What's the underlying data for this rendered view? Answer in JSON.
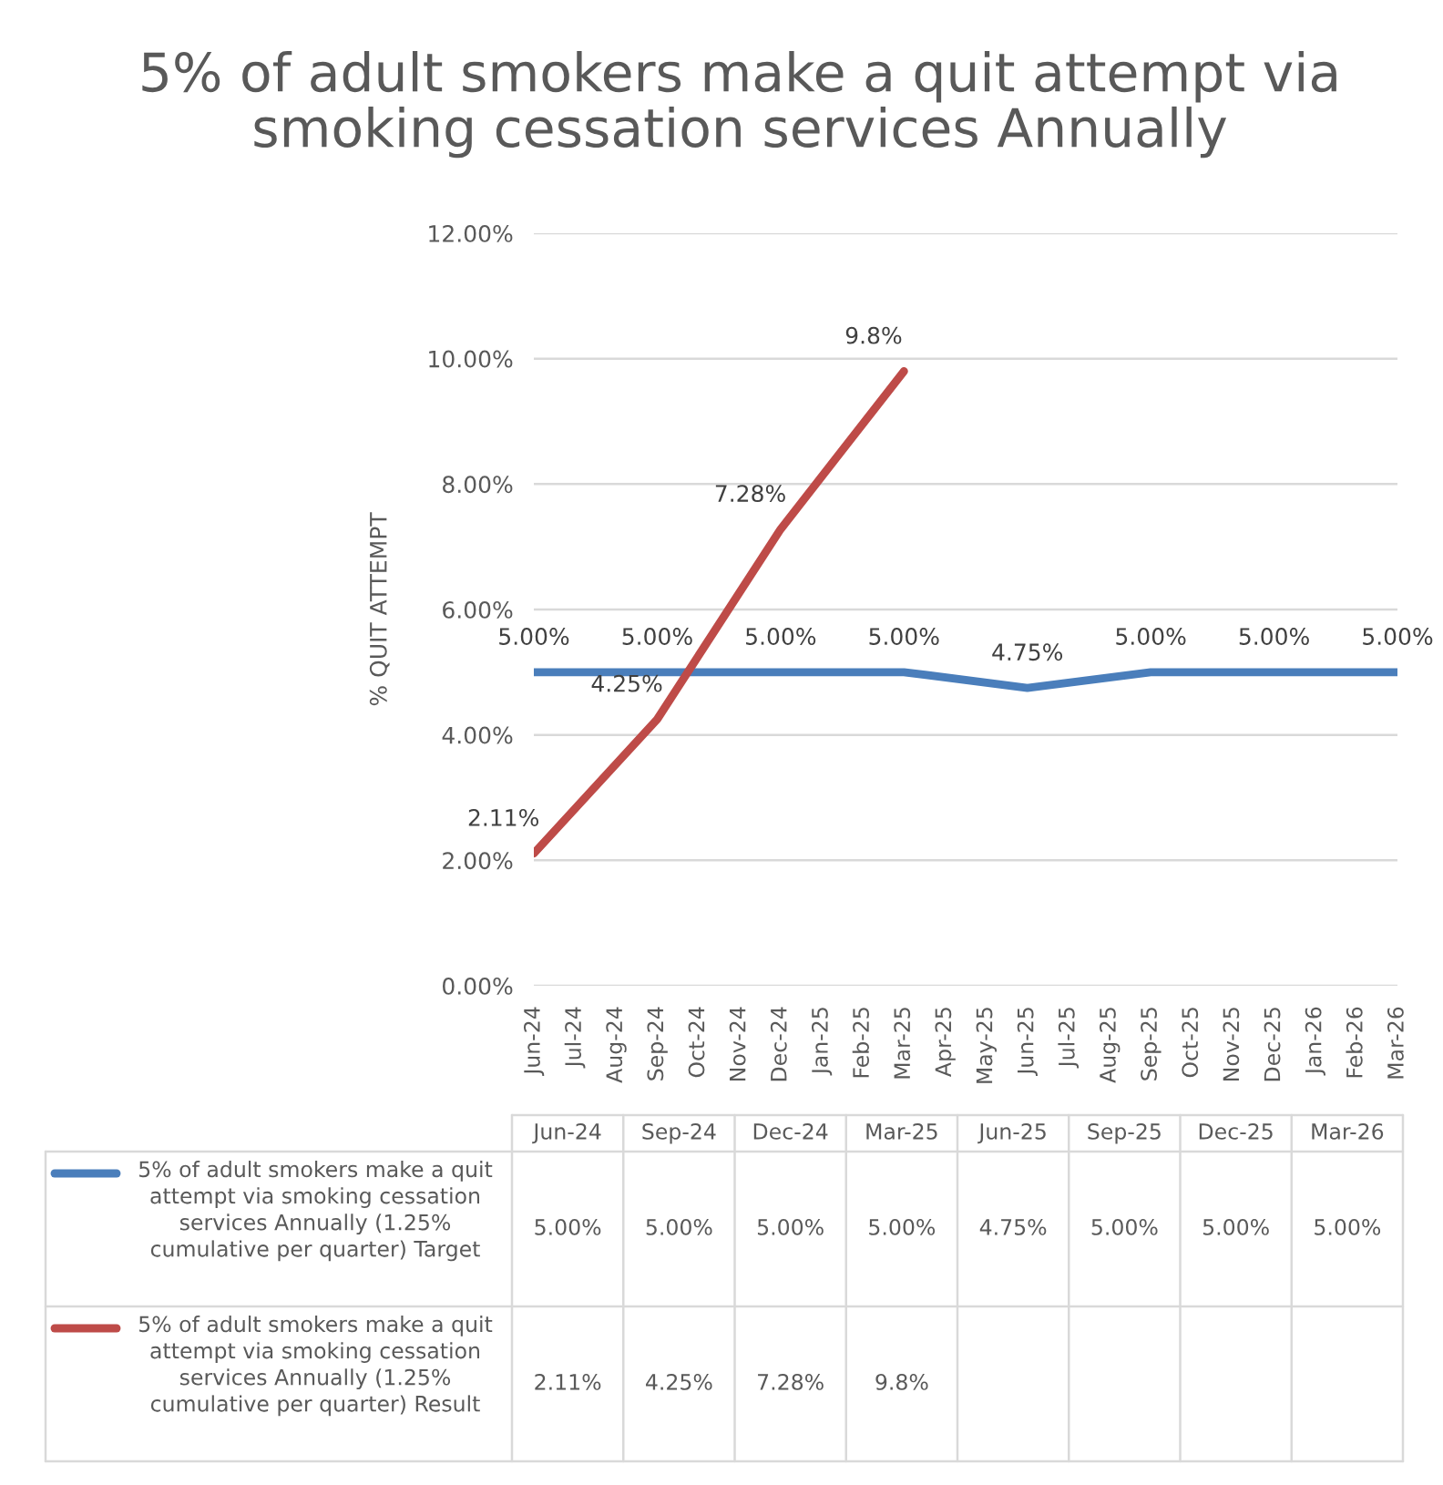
{
  "chart_data": {
    "type": "line",
    "title": "5% of adult smokers make a quit attempt via smoking cessation services Annually",
    "ylabel": "% QUIT ATTEMPT",
    "xlim": [
      "2024-06",
      "2026-03"
    ],
    "xticks": [
      {
        "value": "2024-06",
        "label": "Jun-24"
      },
      {
        "value": "2024-07",
        "label": "Jul-24"
      },
      {
        "value": "2024-08",
        "label": "Aug-24"
      },
      {
        "value": "2024-09",
        "label": "Sep-24"
      },
      {
        "value": "2024-10",
        "label": "Oct-24"
      },
      {
        "value": "2024-11",
        "label": "Nov-24"
      },
      {
        "value": "2024-12",
        "label": "Dec-24"
      },
      {
        "value": "2025-01",
        "label": "Jan-25"
      },
      {
        "value": "2025-02",
        "label": "Feb-25"
      },
      {
        "value": "2025-03",
        "label": "Mar-25"
      },
      {
        "value": "2025-04",
        "label": "Apr-25"
      },
      {
        "value": "2025-05",
        "label": "May-25"
      },
      {
        "value": "2025-06",
        "label": "Jun-25"
      },
      {
        "value": "2025-07",
        "label": "Jul-25"
      },
      {
        "value": "2025-08",
        "label": "Aug-25"
      },
      {
        "value": "2025-09",
        "label": "Sep-25"
      },
      {
        "value": "2025-10",
        "label": "Oct-25"
      },
      {
        "value": "2025-11",
        "label": "Nov-25"
      },
      {
        "value": "2025-12",
        "label": "Dec-25"
      },
      {
        "value": "2026-01",
        "label": "Jan-26"
      },
      {
        "value": "2026-02",
        "label": "Feb-26"
      },
      {
        "value": "2026-03",
        "label": "Mar-26"
      }
    ],
    "ylim": [
      0,
      12
    ],
    "yticks": [
      {
        "value": 0,
        "label": "0.00%"
      },
      {
        "value": 2,
        "label": "2.00%"
      },
      {
        "value": 4,
        "label": "4.00%"
      },
      {
        "value": 6,
        "label": "6.00%"
      },
      {
        "value": 8,
        "label": "8.00%"
      },
      {
        "value": 10,
        "label": "10.00%"
      },
      {
        "value": 12,
        "label": "12.00%"
      }
    ],
    "grid": "y",
    "legend": "bottom",
    "series": [
      {
        "name": "5% of adult smokers make a quit attempt via smoking cessation services Annually (1.25% cumulative per quarter) Target",
        "color": "#4a7ebb",
        "x": [
          "2024-06",
          "2024-09",
          "2024-12",
          "2025-03",
          "2025-06",
          "2025-09",
          "2025-12",
          "2026-03"
        ],
        "values": [
          5,
          5,
          5,
          5,
          4.75,
          5,
          5,
          5
        ],
        "value_labels": [
          "5.00%",
          "5.00%",
          "5.00%",
          "5.00%",
          "4.75%",
          "5.00%",
          "5.00%",
          "5.00%"
        ]
      },
      {
        "name": "5% of adult smokers make a quit attempt via smoking cessation services Annually (1.25% cumulative per quarter) Result",
        "color": "#be4b48",
        "x": [
          "2024-06",
          "2024-09",
          "2024-12",
          "2025-03"
        ],
        "values": [
          2.11,
          4.25,
          7.28,
          9.8
        ],
        "value_labels": [
          "2.11%",
          "4.25%",
          "7.28%",
          "9.8%"
        ]
      }
    ]
  }
}
